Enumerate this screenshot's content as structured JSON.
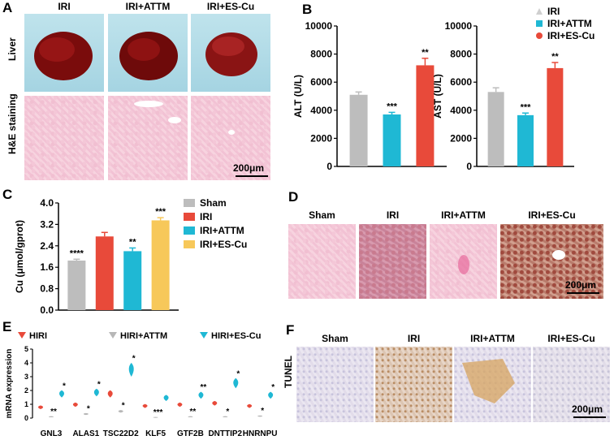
{
  "panels": {
    "A": "A",
    "B": "B",
    "C": "C",
    "D": "D",
    "E": "E",
    "F": "F"
  },
  "panelA": {
    "columns": [
      "IRI",
      "IRI+ATTM",
      "IRI+ES-Cu"
    ],
    "rows": [
      "Liver",
      "H&E staining"
    ],
    "scale": "200μm"
  },
  "panelD": {
    "columns": [
      "Sham",
      "IRI",
      "IRI+ATTM",
      "IRI+ES-Cu"
    ],
    "scale": "200μm"
  },
  "panelF": {
    "columns": [
      "Sham",
      "IRI",
      "IRI+ATTM",
      "IRI+ES-Cu"
    ],
    "row": "TUNEL",
    "scale": "200μm"
  },
  "colors": {
    "gray": "#bdbdbd",
    "cyan": "#1fb8d4",
    "red": "#e84a3a",
    "yellow": "#f7c85a"
  },
  "chart_data": [
    {
      "id": "B-ALT",
      "type": "bar",
      "categories": [
        "IRI",
        "IRI+ATTM",
        "IRI+ES-Cu"
      ],
      "values": [
        5100,
        3700,
        7200
      ],
      "errors": [
        200,
        150,
        500
      ],
      "significance": [
        "",
        "***",
        "**"
      ],
      "ylabel": "ALT (U/L)",
      "ylim": [
        0,
        10000
      ],
      "yticks": [
        "0",
        "2000",
        "4000",
        "6000",
        "8000",
        "10000"
      ],
      "legend": [
        "IRI",
        "IRI+ATTM",
        "IRI+ES-Cu"
      ]
    },
    {
      "id": "B-AST",
      "type": "bar",
      "categories": [
        "IRI",
        "IRI+ATTM",
        "IRI+ES-Cu"
      ],
      "values": [
        5300,
        3650,
        7000
      ],
      "errors": [
        300,
        150,
        400
      ],
      "significance": [
        "",
        "***",
        "**"
      ],
      "ylabel": "AST (U/L)",
      "ylim": [
        0,
        10000
      ],
      "yticks": [
        "0",
        "2000",
        "4000",
        "6000",
        "8000",
        "10000"
      ]
    },
    {
      "id": "C",
      "type": "bar",
      "categories": [
        "Sham",
        "IRI",
        "IRI+ATTM",
        "IRI+ES-Cu"
      ],
      "values": [
        1.85,
        2.75,
        2.2,
        3.35
      ],
      "errors": [
        0.05,
        0.15,
        0.12,
        0.1
      ],
      "significance": [
        "****",
        "",
        "**",
        "***"
      ],
      "ylabel": "Cu (μmol/gprot)",
      "ylim": [
        0,
        4.0
      ],
      "yticks": [
        "0.0",
        "0.8",
        "1.6",
        "2.4",
        "3.2",
        "4.0"
      ],
      "legend": [
        "Sham",
        "IRI",
        "IRI+ATTM",
        "IRI+ES-Cu"
      ]
    },
    {
      "id": "E",
      "type": "violin",
      "categories": [
        "GNL3",
        "ALAS1",
        "TSC22D2",
        "KLF5",
        "GTF2B",
        "DNTTIP2",
        "HNRNPU"
      ],
      "series": [
        {
          "name": "HIRI",
          "values": [
            0.8,
            1.0,
            1.8,
            0.9,
            1.0,
            1.1,
            0.9
          ]
        },
        {
          "name": "HIRI+ATTM",
          "values": [
            0.1,
            0.3,
            0.5,
            0.05,
            0.1,
            0.1,
            0.15
          ]
        },
        {
          "name": "HIRI+ES-Cu",
          "values": [
            1.8,
            1.9,
            3.6,
            1.5,
            1.7,
            2.6,
            1.7
          ]
        }
      ],
      "significance_attm": [
        "**",
        "*",
        "*",
        "***",
        "**",
        "*",
        "*"
      ],
      "significance_escu": [
        "*",
        "*",
        "*",
        "",
        "**",
        "*",
        "*"
      ],
      "ylabel": "mRNA expression",
      "ylim": [
        0,
        5
      ],
      "yticks": [
        "0",
        "1",
        "2",
        "3",
        "4",
        "5"
      ]
    }
  ]
}
